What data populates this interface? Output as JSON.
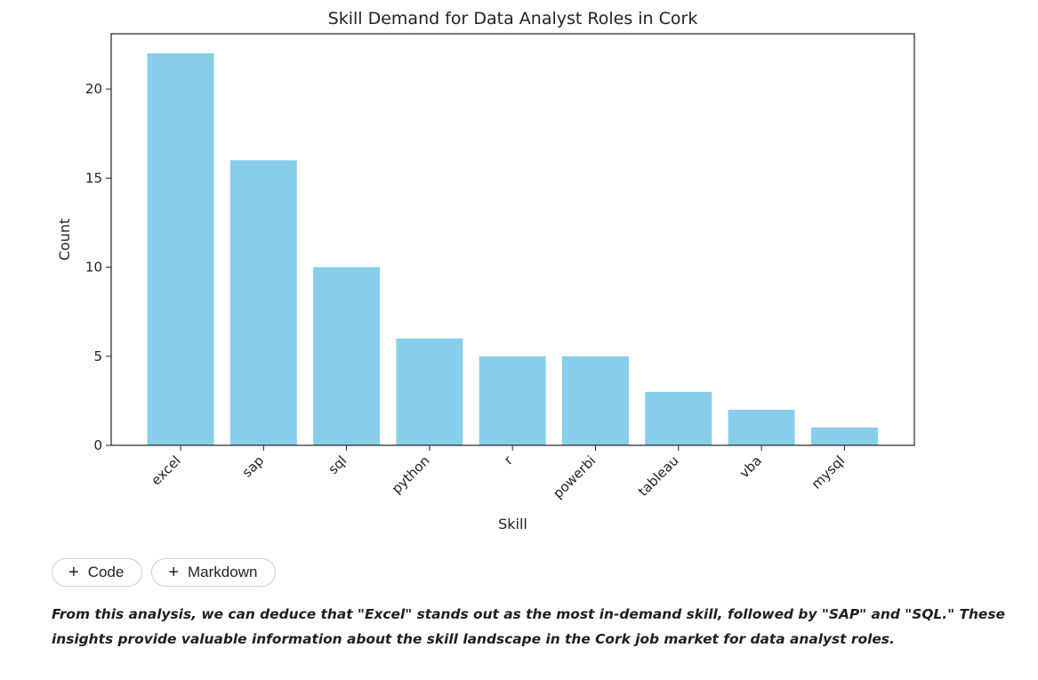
{
  "chart_data": {
    "type": "bar",
    "title": "Skill Demand for Data Analyst Roles in Cork",
    "xlabel": "Skill",
    "ylabel": "Count",
    "categories": [
      "excel",
      "sap",
      "sql",
      "python",
      "r",
      "powerbi",
      "tableau",
      "vba",
      "mysql"
    ],
    "values": [
      22,
      16,
      10,
      6,
      5,
      5,
      3,
      2,
      1
    ],
    "yticks": [
      0,
      5,
      10,
      15,
      20
    ],
    "ylim": [
      0,
      23.1
    ],
    "bar_color": "#87CEEB",
    "grid": false,
    "legend": "none"
  },
  "toolbar": {
    "code_label": "Code",
    "markdown_label": "Markdown",
    "plus_glyph": "+"
  },
  "markdown": {
    "text": "From this analysis, we can deduce that \"Excel\" stands out as the most in-demand skill, followed by \"SAP\" and \"SQL.\" These insights provide valuable information about the skill landscape in the Cork job market for data analyst roles."
  }
}
